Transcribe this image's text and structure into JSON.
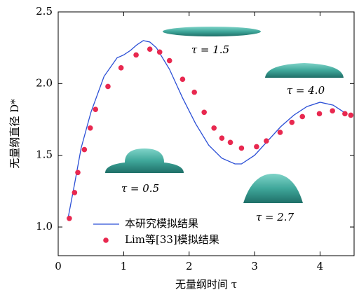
{
  "chart_data": {
    "type": "line",
    "x_label": "无量纲时间 τ",
    "y_label": "无量纲直径 D*",
    "xlim": [
      0,
      4.52
    ],
    "ylim": [
      0.8,
      2.5
    ],
    "xticks": [
      0,
      1,
      2,
      3,
      4
    ],
    "yticks": [
      {
        "value": 1.0,
        "label": "1.0"
      },
      {
        "value": 1.5,
        "label": "1.5"
      },
      {
        "value": 2.0,
        "label": "2.0"
      },
      {
        "value": 2.5,
        "label": "2.5"
      }
    ],
    "annotations": [
      "τ = 1.5",
      "τ = 4.0",
      "τ = 0.5",
      "τ = 2.7"
    ],
    "series": [
      {
        "name": "本研究模拟结果",
        "color": "#2b4fd6",
        "style": "line",
        "x": [
          0.15,
          0.25,
          0.35,
          0.5,
          0.7,
          0.9,
          1.0,
          1.1,
          1.2,
          1.3,
          1.4,
          1.5,
          1.7,
          1.9,
          2.1,
          2.3,
          2.5,
          2.7,
          2.8,
          3.0,
          3.2,
          3.4,
          3.6,
          3.8,
          4.0,
          4.2,
          4.4
        ],
        "values": [
          1.06,
          1.3,
          1.55,
          1.8,
          2.05,
          2.18,
          2.2,
          2.23,
          2.27,
          2.3,
          2.29,
          2.25,
          2.1,
          1.9,
          1.72,
          1.57,
          1.48,
          1.44,
          1.44,
          1.5,
          1.6,
          1.7,
          1.78,
          1.84,
          1.87,
          1.85,
          1.79
        ]
      },
      {
        "name": "Lim等[33]模拟结果",
        "color": "#e8284f",
        "style": "scatter",
        "x": [
          0.17,
          0.25,
          0.3,
          0.4,
          0.49,
          0.57,
          0.76,
          0.96,
          1.19,
          1.4,
          1.55,
          1.7,
          1.9,
          2.08,
          2.23,
          2.38,
          2.5,
          2.63,
          2.8,
          3.03,
          3.18,
          3.39,
          3.57,
          3.73,
          3.99,
          4.19,
          4.38,
          4.47
        ],
        "values": [
          1.06,
          1.24,
          1.38,
          1.54,
          1.69,
          1.82,
          1.98,
          2.11,
          2.2,
          2.24,
          2.22,
          2.16,
          2.03,
          1.94,
          1.8,
          1.69,
          1.62,
          1.59,
          1.55,
          1.56,
          1.6,
          1.66,
          1.73,
          1.77,
          1.79,
          1.81,
          1.79,
          1.78
        ]
      }
    ]
  }
}
